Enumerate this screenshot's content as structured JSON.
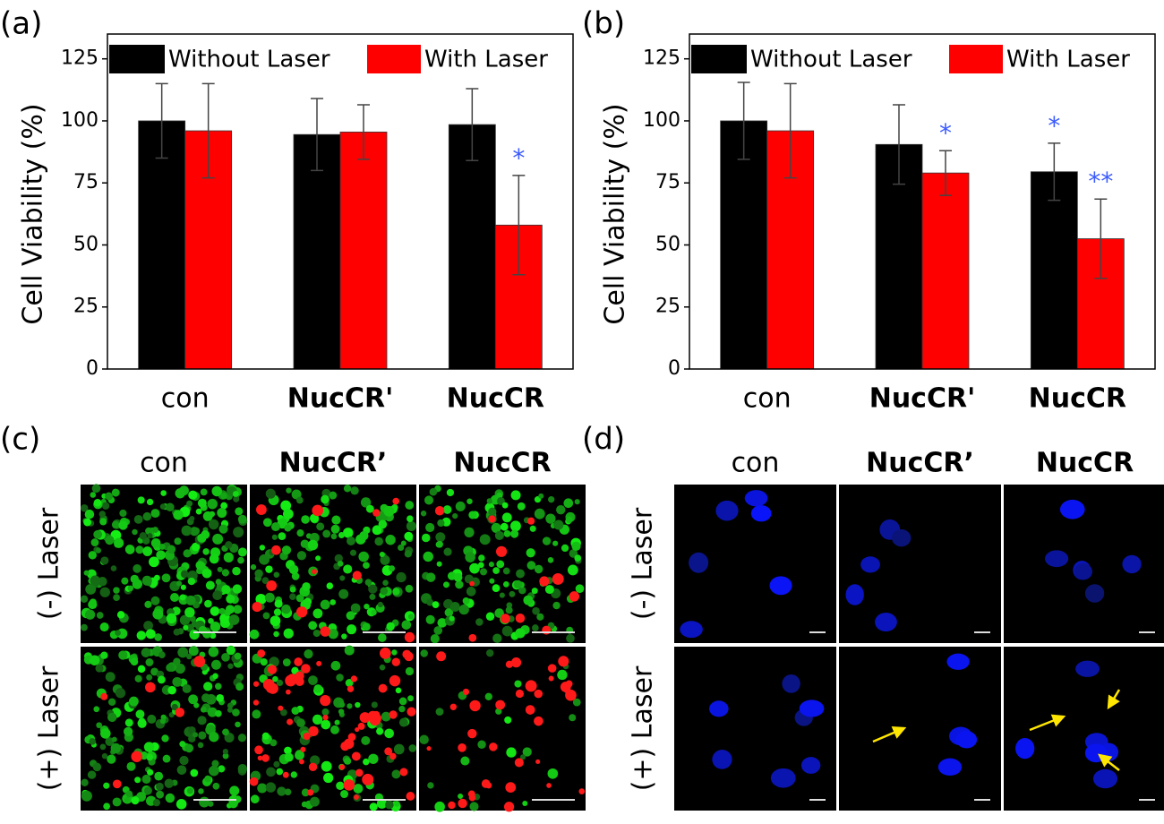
{
  "chart_data": [
    {
      "type": "bar",
      "panel": "(a)",
      "y_label": "Cell Viability (%)",
      "categories": [
        "con",
        "NucCR'",
        "NucCR"
      ],
      "series": [
        {
          "name": "Without Laser",
          "color": "#000000",
          "values": [
            100,
            94.5,
            98.5
          ],
          "errors": [
            15,
            14.5,
            14.5
          ],
          "significance": [
            null,
            null,
            null
          ]
        },
        {
          "name": "With Laser",
          "color": "#ff0000",
          "values": [
            96,
            95.5,
            58
          ],
          "errors": [
            19,
            11,
            20
          ],
          "significance": [
            null,
            null,
            "*"
          ]
        }
      ],
      "ylim": [
        0,
        135
      ],
      "yticks": [
        0,
        25,
        50,
        75,
        100,
        125
      ],
      "grid": false
    },
    {
      "type": "bar",
      "panel": "(b)",
      "y_label": "Cell Viability (%)",
      "categories": [
        "con",
        "NucCR'",
        "NucCR"
      ],
      "series": [
        {
          "name": "Without Laser",
          "color": "#000000",
          "values": [
            100,
            90.5,
            79.5
          ],
          "errors": [
            15.5,
            16,
            11.5
          ],
          "significance": [
            null,
            null,
            "*"
          ]
        },
        {
          "name": "With Laser",
          "color": "#ff0000",
          "values": [
            96,
            79,
            52.5
          ],
          "errors": [
            19,
            9,
            16
          ],
          "significance": [
            null,
            "*",
            "**"
          ]
        }
      ],
      "ylim": [
        0,
        135
      ],
      "yticks": [
        0,
        25,
        50,
        75,
        100,
        125
      ],
      "grid": false
    }
  ],
  "images": [
    {
      "panel": "(c)",
      "columns": [
        "con",
        "NucCR’",
        "NucCR"
      ],
      "rows": [
        "(-) Laser",
        "(+) Laser"
      ]
    },
    {
      "panel": "(d)",
      "columns": [
        "con",
        "NucCR’",
        "NucCR"
      ],
      "rows": [
        "(-) Laser",
        "(+) Laser"
      ]
    }
  ]
}
